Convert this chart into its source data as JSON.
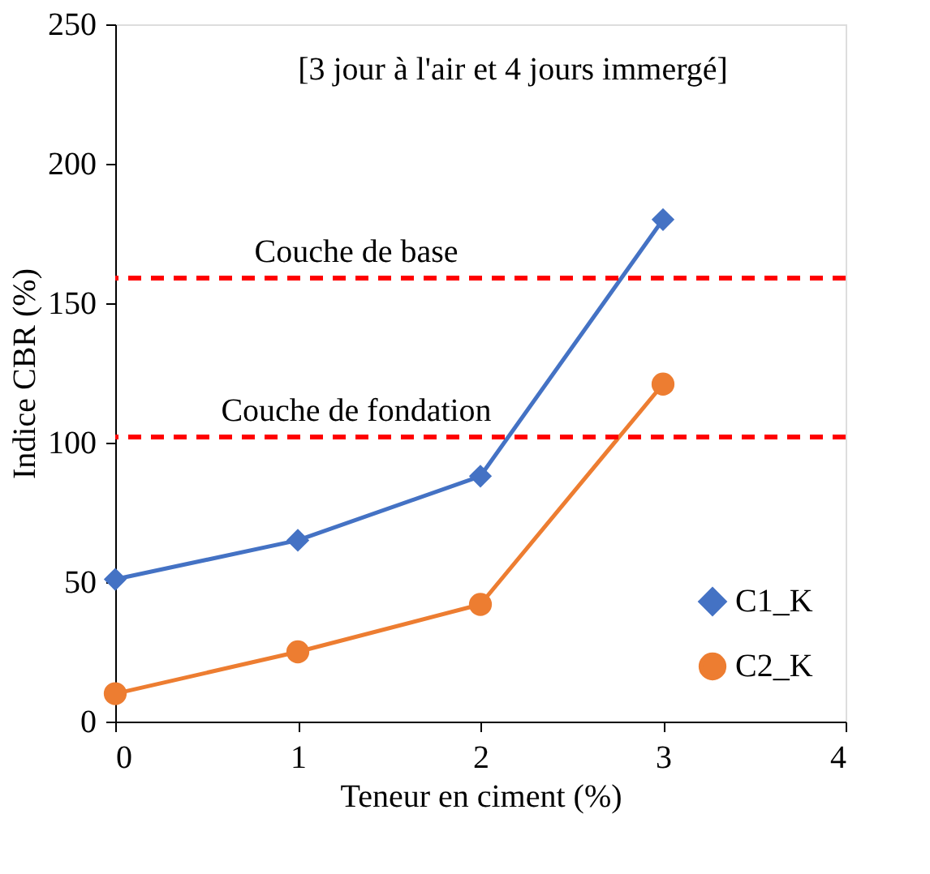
{
  "chart_data": {
    "type": "line",
    "xlabel": "Teneur en ciment (%)",
    "ylabel": "Indice CBR (%)",
    "annotations": [
      "[3 jour à l'air et 4 jours immergé]"
    ],
    "x": [
      0,
      1,
      2,
      3
    ],
    "series": [
      {
        "name": "C1_K",
        "color": "#4472c4",
        "marker": "diamond",
        "values": [
          51,
          65,
          88,
          180
        ]
      },
      {
        "name": "C2_K",
        "color": "#ed7d31",
        "marker": "circle",
        "values": [
          10,
          25,
          42,
          121
        ]
      }
    ],
    "xlim": [
      0,
      4
    ],
    "xticks": [
      0,
      1,
      2,
      3,
      4
    ],
    "ylim": [
      0,
      250
    ],
    "yticks": [
      0,
      50,
      100,
      150,
      200,
      250
    ],
    "ref_lines": [
      {
        "axis": "y",
        "value": 159,
        "label": "Couche de base",
        "color": "#ff0000",
        "line_style": "dashed"
      },
      {
        "axis": "y",
        "value": 102,
        "label": "Couche de fondation",
        "color": "#ff0000",
        "line_style": "dashed"
      }
    ],
    "grid": false,
    "legend": "bottom right",
    "line_style": "solid"
  }
}
